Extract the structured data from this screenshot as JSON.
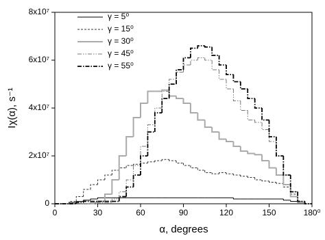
{
  "chart_data": {
    "type": "step-line",
    "x_label": "α, degrees",
    "y_label": "Iχ(α), s⁻¹",
    "xlim": [
      0,
      180
    ],
    "xticks": [
      0,
      30,
      60,
      90,
      120,
      150,
      {
        "value": 180,
        "label": "180⁰"
      }
    ],
    "ylim": [
      0,
      80000000.0
    ],
    "yticks": [
      0,
      {
        "value": 20000000.0,
        "label": "2x10⁷"
      },
      {
        "value": 40000000.0,
        "label": "4x10⁷"
      },
      {
        "value": 60000000.0,
        "label": "6x10⁷"
      },
      {
        "value": 80000000.0,
        "label": "8x10⁷"
      }
    ],
    "grid": false,
    "legend": "upper-left",
    "x": [
      0,
      5,
      10,
      15,
      20,
      25,
      30,
      35,
      40,
      45,
      50,
      55,
      60,
      65,
      70,
      75,
      80,
      85,
      90,
      95,
      100,
      105,
      110,
      115,
      120,
      125,
      130,
      135,
      140,
      145,
      150,
      155,
      160,
      165,
      170,
      175,
      180
    ],
    "series": [
      {
        "name": "γ = 5⁰",
        "color": "#000000",
        "linestyle": "solid",
        "values": [
          0,
          0,
          500000.0,
          1000000.0,
          1500000.0,
          2000000.0,
          2500000.0,
          2500000.0,
          2500000.0,
          2500000.0,
          2500000.0,
          2500000.0,
          2500000.0,
          2500000.0,
          2500000.0,
          2500000.0,
          2500000.0,
          2500000.0,
          2500000.0,
          2500000.0,
          2500000.0,
          2500000.0,
          2500000.0,
          2500000.0,
          2500000.0,
          2000000.0,
          2000000.0,
          2000000.0,
          2000000.0,
          2000000.0,
          2000000.0,
          2000000.0,
          1500000.0,
          1000000.0,
          500000.0,
          0,
          0
        ]
      },
      {
        "name": "γ = 15⁰",
        "color": "#333333",
        "linestyle": "dashed",
        "values": [
          0,
          0,
          1000000.0,
          3000000.0,
          6000000.0,
          8000000.0,
          10000000.0,
          12000000.0,
          14000000.0,
          15000000.0,
          16000000.0,
          16500000.0,
          17000000.0,
          17500000.0,
          18000000.0,
          18500000.0,
          18000000.0,
          17000000.0,
          16000000.0,
          15000000.0,
          14000000.0,
          13000000.0,
          12500000.0,
          13000000.0,
          12500000.0,
          12000000.0,
          11500000.0,
          11000000.0,
          10000000.0,
          9500000.0,
          9000000.0,
          8500000.0,
          7000000.0,
          4000000.0,
          1000000.0,
          0,
          0
        ]
      },
      {
        "name": "γ = 30⁰",
        "color": "#aaaaaa",
        "linestyle": "solid-bold",
        "values": [
          0,
          0,
          0,
          0,
          0,
          500000.0,
          1000000.0,
          4000000.0,
          10000000.0,
          20000000.0,
          28000000.0,
          36000000.0,
          42000000.0,
          47000000.0,
          47000000.0,
          47500000.0,
          45000000.0,
          44000000.0,
          42000000.0,
          38000000.0,
          35000000.0,
          32000000.0,
          30000000.0,
          27000000.0,
          26000000.0,
          24000000.0,
          22000000.0,
          21000000.0,
          20500000.0,
          18000000.0,
          15000000.0,
          12000000.0,
          8000000.0,
          3000000.0,
          500000.0,
          0,
          0
        ]
      },
      {
        "name": "γ = 45⁰",
        "color": "#777777",
        "linestyle": "dash-dot-dot",
        "values": [
          0,
          0,
          0,
          0,
          0,
          0,
          500000.0,
          500000.0,
          2000000.0,
          5000000.0,
          10000000.0,
          16000000.0,
          24000000.0,
          33000000.0,
          40000000.0,
          47000000.0,
          52000000.0,
          55000000.0,
          58000000.0,
          60000000.0,
          61000000.0,
          60000000.0,
          56000000.0,
          52000000.0,
          48000000.0,
          43000000.0,
          39000000.0,
          35000000.0,
          34000000.0,
          31000000.0,
          26000000.0,
          20000000.0,
          12000000.0,
          5000000.0,
          1000000.0,
          0,
          0
        ]
      },
      {
        "name": "γ = 55⁰",
        "color": "#000000",
        "linestyle": "dash-dot",
        "values": [
          0,
          0,
          0,
          500000.0,
          1000000.0,
          1000000.0,
          1000000.0,
          1000000.0,
          1000000.0,
          3000000.0,
          7000000.0,
          12000000.0,
          20000000.0,
          30000000.0,
          38000000.0,
          44000000.0,
          50000000.0,
          56000000.0,
          61000000.0,
          65000000.0,
          66000000.0,
          65500000.0,
          62000000.0,
          58000000.0,
          54000000.0,
          51000000.0,
          48000000.0,
          44000000.0,
          40000000.0,
          35000000.0,
          28000000.0,
          20000000.0,
          12000000.0,
          5000000.0,
          1000000.0,
          0,
          0
        ]
      }
    ]
  }
}
